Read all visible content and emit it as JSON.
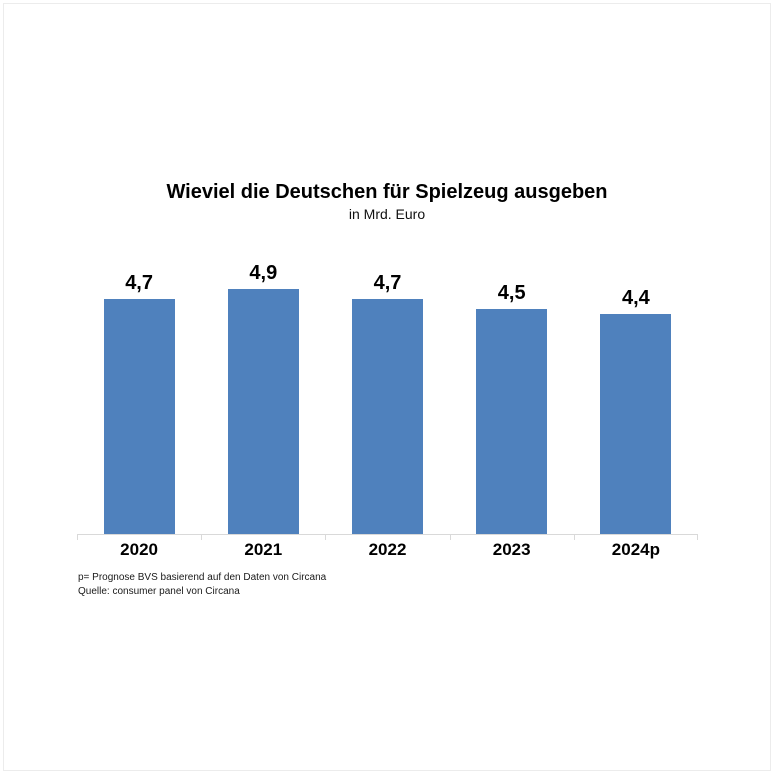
{
  "chart_data": {
    "type": "bar",
    "title": "Wieviel die Deutschen für Spielzeug ausgeben",
    "subtitle": "in Mrd. Euro",
    "categories": [
      "2020",
      "2021",
      "2022",
      "2023",
      "2024p"
    ],
    "values": [
      4.7,
      4.9,
      4.7,
      4.5,
      4.4
    ],
    "value_labels": [
      "4,7",
      "4,9",
      "4,7",
      "4,5",
      "4,4"
    ],
    "xlabel": "",
    "ylabel": "",
    "ylim": [
      0,
      5.5
    ],
    "grid": false,
    "legend": false,
    "legend_position": "none"
  },
  "footnotes": {
    "line1": "p= Prognose BVS basierend auf den Daten von Circana",
    "line2": "Quelle: consumer panel von Circana"
  },
  "colors": {
    "bar": "#4F81BD",
    "axis": "#D9D9D9",
    "text": "#000000",
    "background": "#FFFFFF"
  }
}
